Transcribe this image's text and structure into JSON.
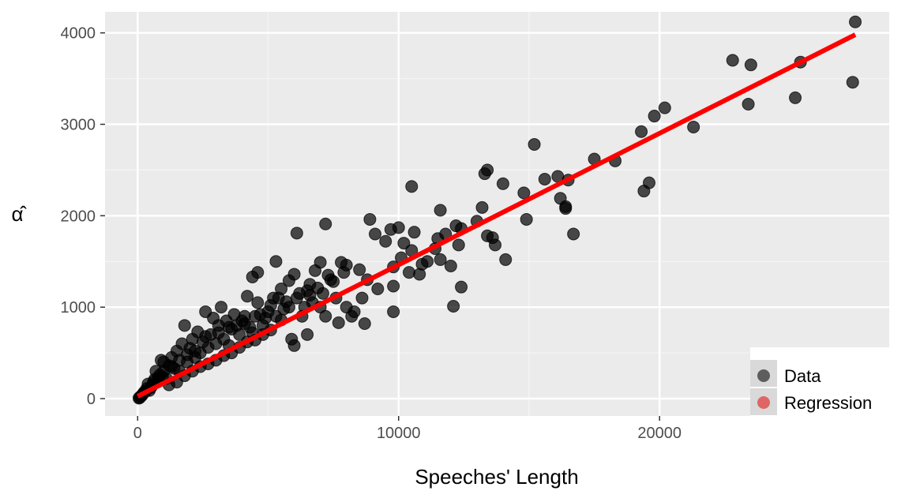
{
  "chart_data": {
    "type": "scatter",
    "xlabel": "Speeches' Length",
    "ylabel": "α̂",
    "xlim": [
      -1250,
      28800
    ],
    "ylim": [
      -190,
      4230
    ],
    "x_ticks": [
      0,
      10000,
      20000
    ],
    "x_tick_labels": [
      "0",
      "10000",
      "20000"
    ],
    "y_ticks": [
      0,
      1000,
      2000,
      3000,
      4000
    ],
    "y_tick_labels": [
      "0",
      "1000",
      "2000",
      "3000",
      "4000"
    ],
    "grid": true,
    "legend": {
      "placement": "bottom-right",
      "entries": [
        {
          "label": "Data",
          "color": "#333333"
        },
        {
          "label": "Regression",
          "color": "#e06666"
        }
      ]
    },
    "series": [
      {
        "kind": "points",
        "color": "#000000",
        "points": [
          [
            27500,
            4120
          ],
          [
            22800,
            3700
          ],
          [
            23500,
            3650
          ],
          [
            25400,
            3680
          ],
          [
            23400,
            3220
          ],
          [
            25200,
            3290
          ],
          [
            27400,
            3460
          ],
          [
            20200,
            3180
          ],
          [
            19800,
            3090
          ],
          [
            21300,
            2970
          ],
          [
            19300,
            2920
          ],
          [
            19600,
            2360
          ],
          [
            19400,
            2270
          ],
          [
            17500,
            2620
          ],
          [
            18300,
            2600
          ],
          [
            15200,
            2780
          ],
          [
            13400,
            2500
          ],
          [
            13300,
            2460
          ],
          [
            14000,
            2350
          ],
          [
            15600,
            2400
          ],
          [
            16100,
            2430
          ],
          [
            16500,
            2390
          ],
          [
            16200,
            2190
          ],
          [
            16400,
            2100
          ],
          [
            16400,
            2080
          ],
          [
            14800,
            2250
          ],
          [
            14900,
            1960
          ],
          [
            16700,
            1800
          ],
          [
            10500,
            2320
          ],
          [
            11600,
            2060
          ],
          [
            12200,
            1890
          ],
          [
            12400,
            1860
          ],
          [
            13200,
            2090
          ],
          [
            13000,
            1940
          ],
          [
            13400,
            1780
          ],
          [
            13600,
            1760
          ],
          [
            13700,
            1680
          ],
          [
            14100,
            1520
          ],
          [
            12000,
            1450
          ],
          [
            12300,
            1680
          ],
          [
            11500,
            1750
          ],
          [
            11400,
            1640
          ],
          [
            11800,
            1800
          ],
          [
            10200,
            1700
          ],
          [
            10600,
            1820
          ],
          [
            10500,
            1620
          ],
          [
            10000,
            1870
          ],
          [
            9500,
            1720
          ],
          [
            9100,
            1800
          ],
          [
            8900,
            1960
          ],
          [
            9700,
            1850
          ],
          [
            10100,
            1540
          ],
          [
            10400,
            1380
          ],
          [
            10800,
            1360
          ],
          [
            10900,
            1470
          ],
          [
            11100,
            1500
          ],
          [
            11600,
            1520
          ],
          [
            12100,
            1010
          ],
          [
            12400,
            1220
          ],
          [
            9800,
            1230
          ],
          [
            9800,
            1440
          ],
          [
            9800,
            950
          ],
          [
            9200,
            1200
          ],
          [
            8600,
            1100
          ],
          [
            8800,
            1300
          ],
          [
            8500,
            1410
          ],
          [
            8000,
            1460
          ],
          [
            7400,
            1300
          ],
          [
            7000,
            1490
          ],
          [
            7800,
            1490
          ],
          [
            7200,
            1910
          ],
          [
            6100,
            1810
          ],
          [
            5300,
            1500
          ],
          [
            4600,
            1380
          ],
          [
            4400,
            1330
          ],
          [
            6000,
            1360
          ],
          [
            5800,
            1290
          ],
          [
            5500,
            1200
          ],
          [
            6500,
            1180
          ],
          [
            6800,
            1400
          ],
          [
            5700,
            1060
          ],
          [
            6300,
            900
          ],
          [
            6500,
            700
          ],
          [
            6000,
            580
          ],
          [
            5900,
            650
          ],
          [
            7200,
            900
          ],
          [
            7600,
            1100
          ],
          [
            8200,
            900
          ],
          [
            8000,
            1000
          ],
          [
            8700,
            820
          ],
          [
            8300,
            950
          ],
          [
            7700,
            830
          ],
          [
            7000,
            1000
          ],
          [
            6700,
            1050
          ],
          [
            5200,
            1100
          ],
          [
            5000,
            950
          ],
          [
            4800,
            800
          ],
          [
            4200,
            1120
          ],
          [
            4100,
            900
          ],
          [
            3900,
            700
          ],
          [
            3600,
            760
          ],
          [
            3200,
            1000
          ],
          [
            3100,
            800
          ],
          [
            2900,
            880
          ],
          [
            2600,
            950
          ],
          [
            2300,
            730
          ],
          [
            2100,
            650
          ],
          [
            1800,
            800
          ],
          [
            1700,
            600
          ],
          [
            1500,
            520
          ],
          [
            1300,
            450
          ],
          [
            1200,
            360
          ],
          [
            1000,
            300
          ],
          [
            900,
            420
          ],
          [
            800,
            230
          ],
          [
            700,
            300
          ],
          [
            600,
            180
          ],
          [
            500,
            120
          ],
          [
            400,
            160
          ],
          [
            300,
            80
          ],
          [
            200,
            50
          ],
          [
            150,
            30
          ],
          [
            100,
            20
          ],
          [
            80,
            10
          ],
          [
            50,
            5
          ],
          [
            250,
            70
          ],
          [
            350,
            110
          ],
          [
            450,
            90
          ],
          [
            550,
            140
          ],
          [
            650,
            210
          ],
          [
            750,
            180
          ],
          [
            850,
            260
          ],
          [
            950,
            240
          ],
          [
            1100,
            220
          ],
          [
            1400,
            330
          ],
          [
            1600,
            300
          ],
          [
            1900,
            400
          ],
          [
            2200,
            450
          ],
          [
            2400,
            500
          ],
          [
            2700,
            560
          ],
          [
            3000,
            600
          ],
          [
            3300,
            650
          ],
          [
            3500,
            580
          ],
          [
            3800,
            800
          ],
          [
            4000,
            850
          ],
          [
            4300,
            780
          ],
          [
            4500,
            900
          ],
          [
            4700,
            920
          ],
          [
            5100,
            1020
          ],
          [
            5400,
            1100
          ],
          [
            5600,
            980
          ],
          [
            6200,
            1150
          ],
          [
            6600,
            1250
          ],
          [
            6900,
            1210
          ],
          [
            7300,
            1350
          ],
          [
            7500,
            1280
          ],
          [
            7900,
            1380
          ],
          [
            1200,
            150
          ],
          [
            1500,
            180
          ],
          [
            1800,
            250
          ],
          [
            2100,
            300
          ],
          [
            2400,
            350
          ],
          [
            2700,
            380
          ],
          [
            3000,
            420
          ],
          [
            3300,
            470
          ],
          [
            3600,
            500
          ],
          [
            3900,
            560
          ],
          [
            4200,
            620
          ],
          [
            4500,
            640
          ],
          [
            4800,
            700
          ],
          [
            5100,
            750
          ],
          [
            2000,
            550
          ],
          [
            2500,
            620
          ],
          [
            2800,
            700
          ],
          [
            3400,
            850
          ],
          [
            3700,
            920
          ],
          [
            4600,
            1050
          ],
          [
            5500,
            860
          ],
          [
            6400,
            1000
          ],
          [
            7100,
            1150
          ],
          [
            1000,
            400
          ],
          [
            1300,
            350
          ],
          [
            1600,
            420
          ],
          [
            1900,
            480
          ],
          [
            2200,
            520
          ],
          [
            2600,
            680
          ],
          [
            3100,
            720
          ],
          [
            3500,
            780
          ],
          [
            4100,
            820
          ],
          [
            4400,
            720
          ],
          [
            4900,
            880
          ],
          [
            5300,
            900
          ],
          [
            5800,
            1000
          ],
          [
            6100,
            1100
          ],
          [
            6600,
            1130
          ]
        ]
      },
      {
        "kind": "line",
        "color": "#ff0000",
        "points": [
          [
            0,
            25
          ],
          [
            27500,
            3980
          ]
        ]
      }
    ]
  }
}
